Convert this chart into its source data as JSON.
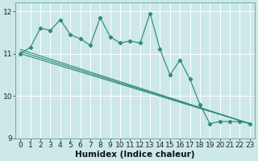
{
  "xlabel": "Humidex (Indice chaleur)",
  "bg_color": "#cce8e8",
  "grid_color": "#ffffff",
  "line_color": "#2e8b7a",
  "x_data": [
    0,
    1,
    2,
    3,
    4,
    5,
    6,
    7,
    8,
    9,
    10,
    11,
    12,
    13,
    14,
    15,
    16,
    17,
    18,
    19,
    20,
    21,
    22,
    23
  ],
  "y_main": [
    11.0,
    11.15,
    11.6,
    11.55,
    11.8,
    11.45,
    11.35,
    11.2,
    11.85,
    11.4,
    11.25,
    11.3,
    11.25,
    11.95,
    11.1,
    10.5,
    10.85,
    10.4,
    9.8,
    9.35,
    9.4,
    9.4,
    9.4,
    9.35
  ],
  "trend1_x": [
    0,
    23
  ],
  "trend1_y": [
    11.1,
    9.35
  ],
  "trend2_x": [
    0,
    23
  ],
  "trend2_y": [
    11.05,
    9.35
  ],
  "trend3_x": [
    0,
    23
  ],
  "trend3_y": [
    11.0,
    9.35
  ],
  "ylim": [
    9.0,
    12.2
  ],
  "xlim": [
    -0.5,
    23.5
  ],
  "yticks": [
    9,
    10,
    11,
    12
  ],
  "xticks": [
    0,
    1,
    2,
    3,
    4,
    5,
    6,
    7,
    8,
    9,
    10,
    11,
    12,
    13,
    14,
    15,
    16,
    17,
    18,
    19,
    20,
    21,
    22,
    23
  ],
  "tick_fontsize": 6.5,
  "xlabel_fontsize": 7.5
}
